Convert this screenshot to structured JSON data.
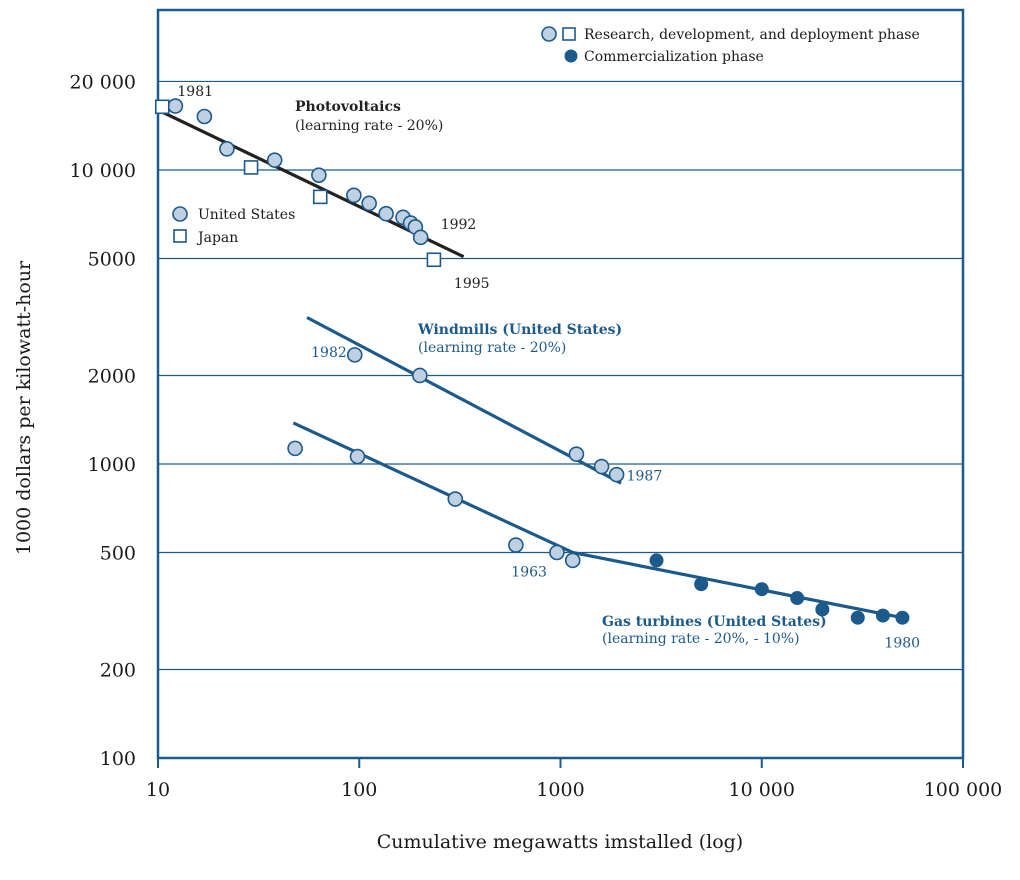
{
  "chart_data": {
    "type": "scatter",
    "x_scale": "log",
    "y_scale": "log",
    "xlim": [
      10,
      100000
    ],
    "ylim": [
      100,
      35000
    ],
    "xlabel": "Cumulative megawatts imstalled (log)",
    "ylabel": "1000 dollars per kilowatt-hour",
    "x_ticks": [
      {
        "value": 10,
        "label": "10"
      },
      {
        "value": 100,
        "label": "100"
      },
      {
        "value": 1000,
        "label": "1000"
      },
      {
        "value": 10000,
        "label": "10 000"
      },
      {
        "value": 100000,
        "label": "100 000"
      }
    ],
    "y_ticks": [
      {
        "value": 100,
        "label": "100"
      },
      {
        "value": 200,
        "label": "200"
      },
      {
        "value": 500,
        "label": "500"
      },
      {
        "value": 1000,
        "label": "1000"
      },
      {
        "value": 2000,
        "label": "2000"
      },
      {
        "value": 5000,
        "label": "5000"
      },
      {
        "value": 10000,
        "label": "10 000"
      },
      {
        "value": 20000,
        "label": "20 000"
      }
    ],
    "gridlines": "horizontal",
    "legend_top": {
      "placement": "top-right",
      "rdd_label": "Research, development, and deployment phase",
      "com_label": "Commercialization phase"
    },
    "legend_country": {
      "placement": "left",
      "us_label": "United States",
      "japan_label": "Japan"
    },
    "colors": {
      "blue": "#1c5a8c",
      "light": "#bfd0e3",
      "dark": "#222222"
    },
    "series": [
      {
        "name": "Photovoltaics",
        "subtitle": "(learning rate - 20%)",
        "points_us": [
          [
            12.2,
            16500
          ],
          [
            17,
            15200
          ],
          [
            22,
            11800
          ],
          [
            38,
            10800
          ],
          [
            63,
            9600
          ],
          [
            94,
            8200
          ],
          [
            112,
            7700
          ],
          [
            136,
            7100
          ],
          [
            165,
            6900
          ],
          [
            180,
            6600
          ],
          [
            190,
            6400
          ],
          [
            202,
            5900
          ]
        ],
        "points_japan": [
          [
            10.5,
            16400
          ],
          [
            29,
            10200
          ],
          [
            64,
            8100
          ],
          [
            235,
            4950
          ]
        ],
        "trend": [
          [
            10,
            16000
          ],
          [
            330,
            5070
          ]
        ],
        "labels": [
          {
            "text": "1981",
            "at": [
              12.2,
              16500
            ]
          },
          {
            "text": "1992",
            "at": [
              202,
              6400
            ]
          },
          {
            "text": "1995",
            "at": [
              235,
              4950
            ]
          }
        ]
      },
      {
        "name": "Windmills (United States)",
        "subtitle": "(learning rate - 20%)",
        "points_us": [
          [
            95,
            2350
          ],
          [
            200,
            2000
          ],
          [
            1200,
            1080
          ],
          [
            1600,
            980
          ],
          [
            1900,
            920
          ]
        ],
        "trend": [
          [
            55,
            3150
          ],
          [
            2000,
            860
          ]
        ],
        "labels": [
          {
            "text": "1982",
            "at": [
              95,
              2350
            ]
          },
          {
            "text": "1987",
            "at": [
              1900,
              920
            ]
          }
        ]
      },
      {
        "name": "Gas turbines (United States)",
        "subtitle": "(learning rate - 20%, - 10%)",
        "points_rdd": [
          [
            48,
            1130
          ],
          [
            98,
            1060
          ],
          [
            300,
            760
          ],
          [
            600,
            530
          ],
          [
            960,
            500
          ],
          [
            1150,
            470
          ]
        ],
        "points_commercial": [
          [
            3000,
            470
          ],
          [
            5000,
            390
          ],
          [
            10000,
            375
          ],
          [
            15000,
            350
          ],
          [
            20000,
            320
          ],
          [
            30000,
            300
          ],
          [
            40000,
            305
          ],
          [
            50000,
            300
          ]
        ],
        "trend": [
          [
            47,
            1380
          ],
          [
            1150,
            500
          ],
          [
            50000,
            300
          ]
        ],
        "labels": [
          {
            "text": "1963",
            "at": [
              960,
              500
            ]
          },
          {
            "text": "1980",
            "at": [
              50000,
              300
            ]
          }
        ]
      }
    ]
  }
}
